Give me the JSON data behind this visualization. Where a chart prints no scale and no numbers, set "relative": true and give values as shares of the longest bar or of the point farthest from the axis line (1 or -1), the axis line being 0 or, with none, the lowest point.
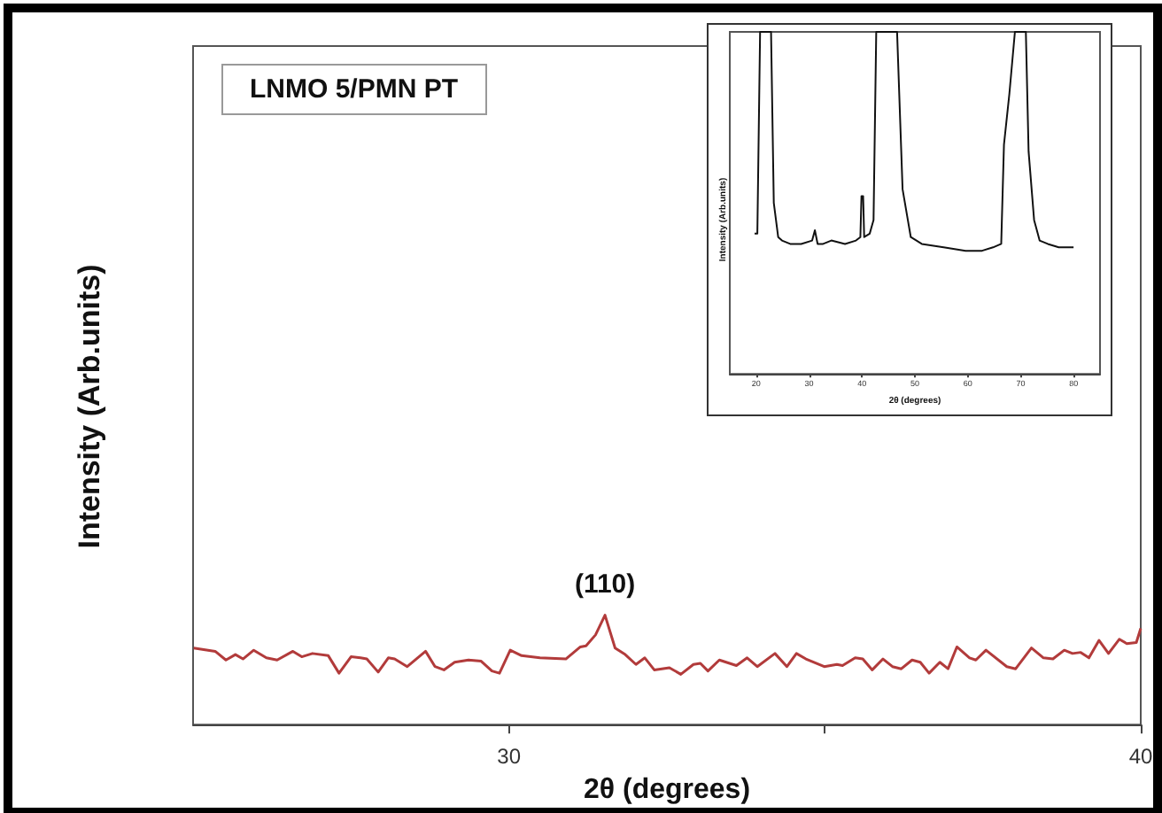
{
  "chart_data": [
    {
      "type": "line",
      "xlabel": "2θ (degrees)",
      "ylabel": "Intensity (Arb.units)",
      "relative": true,
      "color": "#b23b3b",
      "marker": "none",
      "line_style": "solid",
      "grid": false,
      "annotations": [
        "LNMO 5/PMN PT",
        {
          "text": "(110)",
          "x": 31.52,
          "y": 1
        }
      ],
      "xlim": [
        25,
        40
      ],
      "xticks": [
        30,
        {
          "value": 35,
          "label": null
        },
        40
      ],
      "x": [
        25.01,
        25.35,
        25.52,
        25.67,
        25.79,
        25.96,
        26.16,
        26.33,
        26.58,
        26.72,
        26.89,
        27.14,
        27.31,
        27.5,
        27.65,
        27.75,
        27.93,
        28.09,
        28.19,
        28.39,
        28.68,
        28.83,
        28.97,
        29.14,
        29.36,
        29.56,
        29.73,
        29.85,
        30.02,
        30.2,
        30.49,
        30.9,
        31.13,
        31.22,
        31.37,
        31.52,
        31.68,
        31.84,
        32.01,
        32.15,
        32.3,
        32.54,
        32.72,
        32.92,
        33.03,
        33.15,
        33.33,
        33.6,
        33.77,
        33.93,
        34.21,
        34.4,
        34.55,
        34.7,
        34.99,
        35.19,
        35.28,
        35.48,
        35.6,
        35.75,
        35.92,
        36.07,
        36.21,
        36.38,
        36.51,
        36.65,
        36.82,
        36.95,
        37.09,
        37.29,
        37.39,
        37.55,
        37.88,
        38.02,
        38.27,
        38.46,
        38.61,
        38.79,
        38.92,
        39.05,
        39.18,
        39.34,
        39.49,
        39.66,
        39.78,
        39.93,
        40
      ],
      "values": [
        0.7,
        0.67,
        0.59,
        0.64,
        0.6,
        0.68,
        0.61,
        0.59,
        0.67,
        0.62,
        0.65,
        0.63,
        0.47,
        0.62,
        0.61,
        0.6,
        0.48,
        0.61,
        0.6,
        0.53,
        0.67,
        0.53,
        0.5,
        0.57,
        0.59,
        0.58,
        0.49,
        0.47,
        0.68,
        0.63,
        0.61,
        0.6,
        0.71,
        0.72,
        0.82,
        1,
        0.7,
        0.64,
        0.55,
        0.61,
        0.5,
        0.52,
        0.46,
        0.55,
        0.56,
        0.49,
        0.59,
        0.54,
        0.61,
        0.53,
        0.65,
        0.53,
        0.65,
        0.6,
        0.53,
        0.55,
        0.54,
        0.61,
        0.6,
        0.5,
        0.6,
        0.53,
        0.51,
        0.59,
        0.57,
        0.47,
        0.57,
        0.51,
        0.71,
        0.61,
        0.59,
        0.68,
        0.53,
        0.51,
        0.7,
        0.61,
        0.6,
        0.68,
        0.65,
        0.66,
        0.61,
        0.77,
        0.65,
        0.78,
        0.74,
        0.75,
        0.88
      ]
    },
    {
      "type": "line",
      "xlabel": "2θ (degrees)",
      "ylabel": "Intensity (Arb.units)",
      "relative": true,
      "color": "#111111",
      "marker": "none",
      "line_style": "solid",
      "grid": false,
      "xlim": [
        15,
        85
      ],
      "xticks": [
        20,
        30,
        40,
        50,
        60,
        70,
        80
      ],
      "x": [
        19.69,
        20.21,
        20.73,
        22.8,
        23.32,
        24.15,
        24.87,
        26.42,
        28.5,
        30.57,
        31.09,
        31.61,
        32.64,
        34.2,
        36.79,
        38.86,
        39.69,
        39.9,
        40.21,
        40.41,
        41.45,
        42.18,
        42.69,
        46.63,
        47.67,
        49.22,
        51.3,
        55.44,
        59.59,
        62.69,
        64.77,
        66.32,
        66.84,
        67.87,
        68.91,
        70.98,
        71.5,
        72.54,
        73.58,
        75.13,
        77.2,
        80
      ],
      "values": [
        0.41,
        0.41,
        1,
        1,
        0.5,
        0.4,
        0.39,
        0.38,
        0.38,
        0.39,
        0.42,
        0.38,
        0.38,
        0.39,
        0.38,
        0.39,
        0.4,
        0.52,
        0.52,
        0.4,
        0.41,
        0.45,
        1,
        1,
        0.54,
        0.4,
        0.38,
        0.37,
        0.36,
        0.36,
        0.37,
        0.38,
        0.67,
        0.82,
        1,
        1,
        0.65,
        0.45,
        0.39,
        0.38,
        0.37,
        0.37
      ]
    }
  ]
}
